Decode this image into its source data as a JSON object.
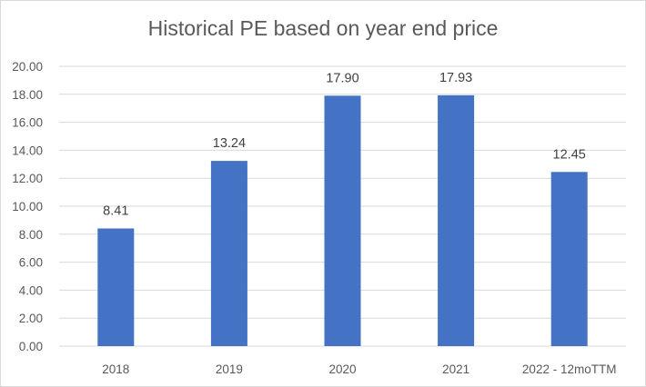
{
  "chart_data": {
    "type": "bar",
    "title": "Historical PE based on year end price",
    "categories": [
      "2018",
      "2019",
      "2020",
      "2021",
      "2022 - 12moTTM"
    ],
    "values": [
      8.41,
      13.24,
      17.9,
      17.93,
      12.45
    ],
    "data_labels": [
      "8.41",
      "13.24",
      "17.90",
      "17.93",
      "12.45"
    ],
    "y_ticks": [
      "0.00",
      "2.00",
      "4.00",
      "6.00",
      "8.00",
      "10.00",
      "12.00",
      "14.00",
      "16.00",
      "18.00",
      "20.00"
    ],
    "ylim": [
      0,
      20
    ],
    "xlabel": "",
    "ylabel": "",
    "grid": true,
    "legend": "none",
    "bar_color": "#4472c4",
    "grid_color": "#d9d9d9"
  }
}
